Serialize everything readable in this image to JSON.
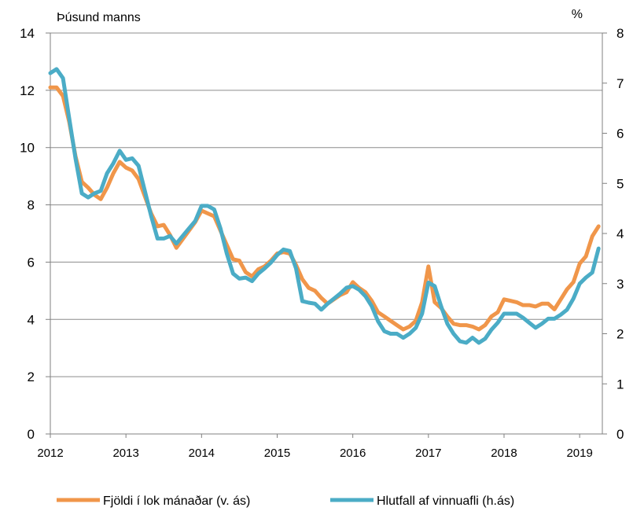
{
  "chart_data": {
    "type": "line",
    "left_unit": "Þúsund manns",
    "right_unit": "%",
    "y_left_lim": [
      0,
      14
    ],
    "y_left_ticks": [
      "0",
      "2",
      "4",
      "6",
      "8",
      "10",
      "12",
      "14"
    ],
    "y_right_lim": [
      0,
      8
    ],
    "y_right_ticks": [
      "0",
      "1",
      "2",
      "3",
      "4",
      "5",
      "6",
      "7",
      "8"
    ],
    "x_lim": [
      2012,
      2019.3
    ],
    "x_ticks": [
      "2012",
      "2013",
      "2014",
      "2015",
      "2016",
      "2017",
      "2018",
      "2019"
    ],
    "grid": true,
    "legend_position": "bottom",
    "series": [
      {
        "name": "Fjöldi í lok mánaðar (v. ás)",
        "axis": "left",
        "color": "#f0964a",
        "x": [
          2012.0,
          2012.083,
          2012.167,
          2012.25,
          2012.333,
          2012.417,
          2012.5,
          2012.583,
          2012.667,
          2012.75,
          2012.833,
          2012.917,
          2013.0,
          2013.083,
          2013.167,
          2013.25,
          2013.333,
          2013.417,
          2013.5,
          2013.583,
          2013.667,
          2013.75,
          2013.833,
          2013.917,
          2014.0,
          2014.083,
          2014.167,
          2014.25,
          2014.333,
          2014.417,
          2014.5,
          2014.583,
          2014.667,
          2014.75,
          2014.833,
          2014.917,
          2015.0,
          2015.083,
          2015.167,
          2015.25,
          2015.333,
          2015.417,
          2015.5,
          2015.583,
          2015.667,
          2015.75,
          2015.833,
          2015.917,
          2016.0,
          2016.083,
          2016.167,
          2016.25,
          2016.333,
          2016.417,
          2016.5,
          2016.583,
          2016.667,
          2016.75,
          2016.833,
          2016.917,
          2017.0,
          2017.083,
          2017.167,
          2017.25,
          2017.333,
          2017.417,
          2017.5,
          2017.583,
          2017.667,
          2017.75,
          2017.833,
          2017.917,
          2018.0,
          2018.083,
          2018.167,
          2018.25,
          2018.333,
          2018.417,
          2018.5,
          2018.583,
          2018.667,
          2018.75,
          2018.833,
          2018.917,
          2019.0,
          2019.083,
          2019.167,
          2019.25
        ],
        "values": [
          12.1,
          12.1,
          11.8,
          10.9,
          9.7,
          8.8,
          8.6,
          8.35,
          8.2,
          8.6,
          9.1,
          9.5,
          9.3,
          9.2,
          8.9,
          8.3,
          7.7,
          7.25,
          7.3,
          6.95,
          6.5,
          6.8,
          7.1,
          7.4,
          7.8,
          7.7,
          7.6,
          7.1,
          6.6,
          6.1,
          6.05,
          5.65,
          5.5,
          5.75,
          5.85,
          6.05,
          6.3,
          6.35,
          6.3,
          5.9,
          5.4,
          5.1,
          5.0,
          4.75,
          4.55,
          4.7,
          4.85,
          4.95,
          5.3,
          5.1,
          4.95,
          4.65,
          4.25,
          4.1,
          3.95,
          3.8,
          3.65,
          3.75,
          3.95,
          4.6,
          5.85,
          4.6,
          4.4,
          4.1,
          3.85,
          3.8,
          3.8,
          3.75,
          3.65,
          3.8,
          4.1,
          4.25,
          4.7,
          4.65,
          4.6,
          4.5,
          4.5,
          4.45,
          4.55,
          4.55,
          4.35,
          4.7,
          5.05,
          5.3,
          5.95,
          6.2,
          6.9,
          7.25
        ]
      },
      {
        "name": "Hlutfall af vinnuafli (h.ás)",
        "axis": "right",
        "color": "#4bacc6",
        "x": [
          2012.0,
          2012.083,
          2012.167,
          2012.25,
          2012.333,
          2012.417,
          2012.5,
          2012.583,
          2012.667,
          2012.75,
          2012.833,
          2012.917,
          2013.0,
          2013.083,
          2013.167,
          2013.25,
          2013.333,
          2013.417,
          2013.5,
          2013.583,
          2013.667,
          2013.75,
          2013.833,
          2013.917,
          2014.0,
          2014.083,
          2014.167,
          2014.25,
          2014.333,
          2014.417,
          2014.5,
          2014.583,
          2014.667,
          2014.75,
          2014.833,
          2014.917,
          2015.0,
          2015.083,
          2015.167,
          2015.25,
          2015.333,
          2015.417,
          2015.5,
          2015.583,
          2015.667,
          2015.75,
          2015.833,
          2015.917,
          2016.0,
          2016.083,
          2016.167,
          2016.25,
          2016.333,
          2016.417,
          2016.5,
          2016.583,
          2016.667,
          2016.75,
          2016.833,
          2016.917,
          2017.0,
          2017.083,
          2017.167,
          2017.25,
          2017.333,
          2017.417,
          2017.5,
          2017.583,
          2017.667,
          2017.75,
          2017.833,
          2017.917,
          2018.0,
          2018.083,
          2018.167,
          2018.25,
          2018.333,
          2018.417,
          2018.5,
          2018.583,
          2018.667,
          2018.75,
          2018.833,
          2018.917,
          2019.0,
          2019.083,
          2019.167,
          2019.25
        ],
        "values": [
          7.2,
          7.28,
          7.1,
          6.3,
          5.5,
          4.8,
          4.72,
          4.8,
          4.85,
          5.2,
          5.4,
          5.65,
          5.47,
          5.5,
          5.35,
          4.85,
          4.35,
          3.9,
          3.9,
          3.95,
          3.8,
          3.95,
          4.1,
          4.25,
          4.55,
          4.55,
          4.48,
          4.1,
          3.6,
          3.2,
          3.1,
          3.12,
          3.05,
          3.2,
          3.3,
          3.42,
          3.57,
          3.68,
          3.65,
          3.3,
          2.65,
          2.62,
          2.6,
          2.48,
          2.6,
          2.7,
          2.8,
          2.92,
          2.95,
          2.88,
          2.75,
          2.55,
          2.25,
          2.05,
          2.0,
          2.0,
          1.92,
          2.0,
          2.12,
          2.4,
          3.02,
          2.95,
          2.55,
          2.2,
          2.0,
          1.85,
          1.82,
          1.92,
          1.82,
          1.9,
          2.08,
          2.22,
          2.4,
          2.4,
          2.4,
          2.32,
          2.22,
          2.12,
          2.2,
          2.3,
          2.3,
          2.38,
          2.48,
          2.7,
          3.0,
          3.12,
          3.22,
          3.7
        ]
      }
    ]
  }
}
